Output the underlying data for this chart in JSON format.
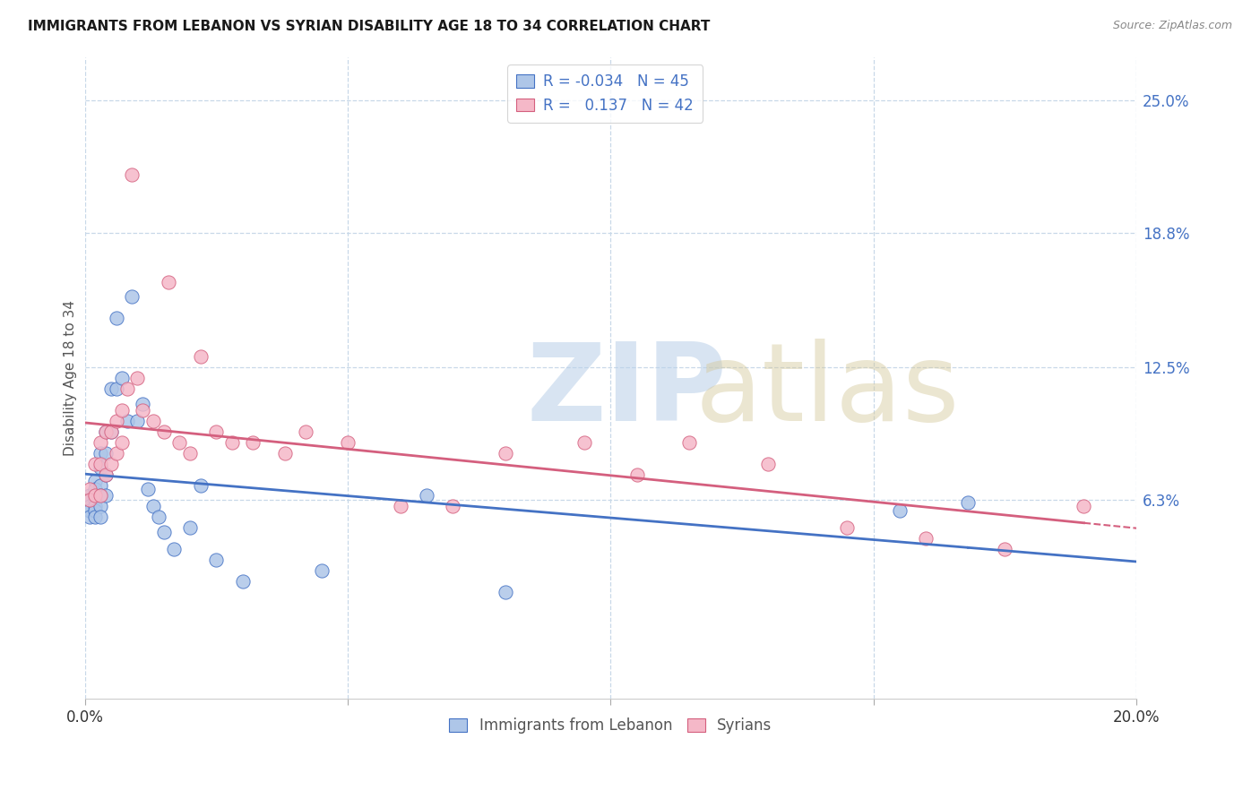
{
  "title": "IMMIGRANTS FROM LEBANON VS SYRIAN DISABILITY AGE 18 TO 34 CORRELATION CHART",
  "source": "Source: ZipAtlas.com",
  "ylabel": "Disability Age 18 to 34",
  "xlim": [
    0.0,
    0.2
  ],
  "ylim": [
    -0.03,
    0.27
  ],
  "xticks": [
    0.0,
    0.05,
    0.1,
    0.15,
    0.2
  ],
  "xtick_labels": [
    "0.0%",
    "",
    "",
    "",
    "20.0%"
  ],
  "ytick_labels_right": [
    "6.3%",
    "12.5%",
    "18.8%",
    "25.0%"
  ],
  "ytick_values_right": [
    0.063,
    0.125,
    0.188,
    0.25
  ],
  "legend_labels": [
    "Immigrants from Lebanon",
    "Syrians"
  ],
  "lebanon_color": "#aec6e8",
  "syrian_color": "#f5b8c8",
  "lebanon_line_color": "#4472c4",
  "syrian_line_color": "#d45f7e",
  "r_lebanon": -0.034,
  "n_lebanon": 45,
  "r_syrian": 0.137,
  "n_syrian": 42,
  "background_color": "#ffffff",
  "grid_color": "#c8d8e8",
  "lebanon_x": [
    0.001,
    0.001,
    0.001,
    0.001,
    0.001,
    0.002,
    0.002,
    0.002,
    0.002,
    0.002,
    0.002,
    0.002,
    0.003,
    0.003,
    0.003,
    0.003,
    0.003,
    0.003,
    0.004,
    0.004,
    0.004,
    0.004,
    0.005,
    0.005,
    0.006,
    0.006,
    0.007,
    0.008,
    0.009,
    0.01,
    0.011,
    0.012,
    0.013,
    0.014,
    0.015,
    0.017,
    0.02,
    0.022,
    0.025,
    0.03,
    0.045,
    0.065,
    0.08,
    0.155,
    0.168
  ],
  "lebanon_y": [
    0.065,
    0.063,
    0.06,
    0.058,
    0.055,
    0.072,
    0.068,
    0.065,
    0.063,
    0.06,
    0.058,
    0.055,
    0.085,
    0.078,
    0.07,
    0.065,
    0.06,
    0.055,
    0.095,
    0.085,
    0.075,
    0.065,
    0.115,
    0.095,
    0.148,
    0.115,
    0.12,
    0.1,
    0.158,
    0.1,
    0.108,
    0.068,
    0.06,
    0.055,
    0.048,
    0.04,
    0.05,
    0.07,
    0.035,
    0.025,
    0.03,
    0.065,
    0.02,
    0.058,
    0.062
  ],
  "syrian_x": [
    0.001,
    0.001,
    0.002,
    0.002,
    0.003,
    0.003,
    0.003,
    0.004,
    0.004,
    0.005,
    0.005,
    0.006,
    0.006,
    0.007,
    0.007,
    0.008,
    0.009,
    0.01,
    0.011,
    0.013,
    0.015,
    0.016,
    0.018,
    0.02,
    0.022,
    0.025,
    0.028,
    0.032,
    0.038,
    0.042,
    0.05,
    0.06,
    0.07,
    0.08,
    0.095,
    0.105,
    0.115,
    0.13,
    0.145,
    0.16,
    0.175,
    0.19
  ],
  "syrian_y": [
    0.068,
    0.063,
    0.08,
    0.065,
    0.09,
    0.08,
    0.065,
    0.095,
    0.075,
    0.095,
    0.08,
    0.1,
    0.085,
    0.105,
    0.09,
    0.115,
    0.215,
    0.12,
    0.105,
    0.1,
    0.095,
    0.165,
    0.09,
    0.085,
    0.13,
    0.095,
    0.09,
    0.09,
    0.085,
    0.095,
    0.09,
    0.06,
    0.06,
    0.085,
    0.09,
    0.075,
    0.09,
    0.08,
    0.05,
    0.045,
    0.04,
    0.06
  ]
}
